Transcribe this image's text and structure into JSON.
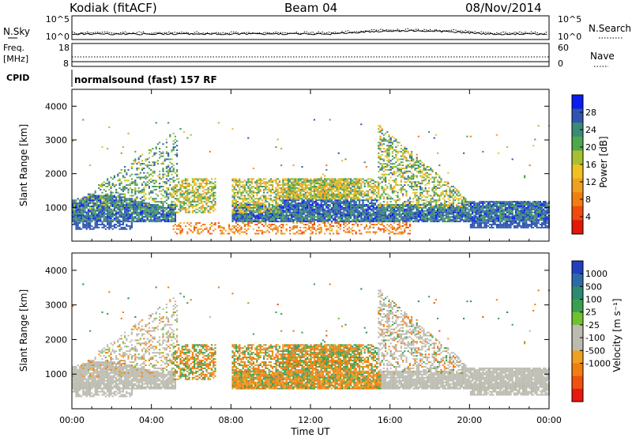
{
  "header": {
    "station": "Kodiak (fitACF)",
    "beam": "Beam 04",
    "date": "08/Nov/2014"
  },
  "noise_panel": {
    "left_label": "N.Sky",
    "left_ticks": [
      "10^5",
      "10^0"
    ],
    "right_label": "N.Search",
    "right_ticks": [
      "10^5",
      "10^0"
    ]
  },
  "freq_panel": {
    "left_label_line1": "Freq.",
    "left_label_line2": "[MHz]",
    "left_ticks": [
      "18",
      "8"
    ],
    "right_label": "Nave",
    "right_ticks": [
      "60",
      "0"
    ]
  },
  "cpid": {
    "label": "CPID",
    "text": "normalsound (fast) 157 RF"
  },
  "power_panel": {
    "ylabel": "Slant Range [km]",
    "yticks": [
      "1000",
      "2000",
      "3000",
      "4000"
    ],
    "colorbar_label": "Power [dB]",
    "colorbar_ticks": [
      "4",
      "8",
      "12",
      "16",
      "20",
      "24",
      "28"
    ],
    "colorbar_colors": [
      "#0a1cf0",
      "#2f55b0",
      "#3a8a78",
      "#4ea84a",
      "#a8c030",
      "#f0c020",
      "#f0a020",
      "#f07e10",
      "#f04a10",
      "#e01808"
    ]
  },
  "velocity_panel": {
    "ylabel": "Slant Range [km]",
    "yticks": [
      "1000",
      "2000",
      "3000",
      "4000"
    ],
    "colorbar_label": "Velocity [m s⁻¹]",
    "colorbar_ticks": [
      "1000",
      "500",
      "100",
      "25",
      "-25",
      "-100",
      "-500",
      "-1000"
    ],
    "colorbar_colors": [
      "#2040c0",
      "#2f6aa8",
      "#2d8a70",
      "#3aa050",
      "#70c030",
      "#bbbbb0",
      "#bbbbb0",
      "#f0a020",
      "#f07e10",
      "#f05010",
      "#e81810"
    ]
  },
  "xaxis": {
    "label": "Time UT",
    "ticks": [
      "00:00",
      "04:00",
      "08:00",
      "12:00",
      "16:00",
      "20:00",
      "00:00"
    ]
  },
  "chart_data": {
    "type": "heatmap",
    "title": "Kodiak (fitACF) Beam 04 08/Nov/2014",
    "x_unit": "hours UT",
    "xlim": [
      0,
      24
    ],
    "ylim": [
      0,
      4500
    ],
    "xlabel": "Time UT",
    "ylabel": "Slant Range [km]",
    "power_colorbar": {
      "label": "Power [dB]",
      "range": [
        0,
        30
      ]
    },
    "velocity_colorbar": {
      "label": "Velocity [m s⁻¹]",
      "boundaries": [
        -1000,
        -500,
        -100,
        -25,
        25,
        100,
        500,
        1000
      ]
    },
    "power_regions": [
      {
        "name": "ground-scatter-band",
        "t_start": 0,
        "t_end": 24,
        "range_km": [
          600,
          1300
        ],
        "power_db": 26,
        "note": "strong band interrupted 05:00-08:00"
      },
      {
        "name": "evening-slant-tongue",
        "t_start": 0.2,
        "t_end": 5.3,
        "range_km": [
          1000,
          3500
        ],
        "power_db": 22
      },
      {
        "name": "midday-patch",
        "t_start": 8,
        "t_end": 15.5,
        "range_km": [
          800,
          1800
        ],
        "power_db": 20
      },
      {
        "name": "dawn-slant-tongue",
        "t_start": 15.5,
        "t_end": 20,
        "range_km": [
          1000,
          3500
        ],
        "power_db": 20
      },
      {
        "name": "near-range-echoes",
        "t_start": 5,
        "t_end": 17,
        "range_km": [
          250,
          500
        ],
        "power_db": 6
      }
    ],
    "velocity_regions": [
      {
        "name": "ground-scatter-band",
        "t_start": 0,
        "t_end": 24,
        "range_km": [
          500,
          1500
        ],
        "velocity": 0
      },
      {
        "name": "ionospheric-patch",
        "t_start": 5,
        "t_end": 15.5,
        "range_km": [
          1000,
          1900
        ],
        "velocity": -100
      },
      {
        "name": "slant-tongues",
        "t_start": 2,
        "t_end": 19,
        "range_km": [
          1500,
          3500
        ],
        "velocity": -25
      }
    ]
  }
}
